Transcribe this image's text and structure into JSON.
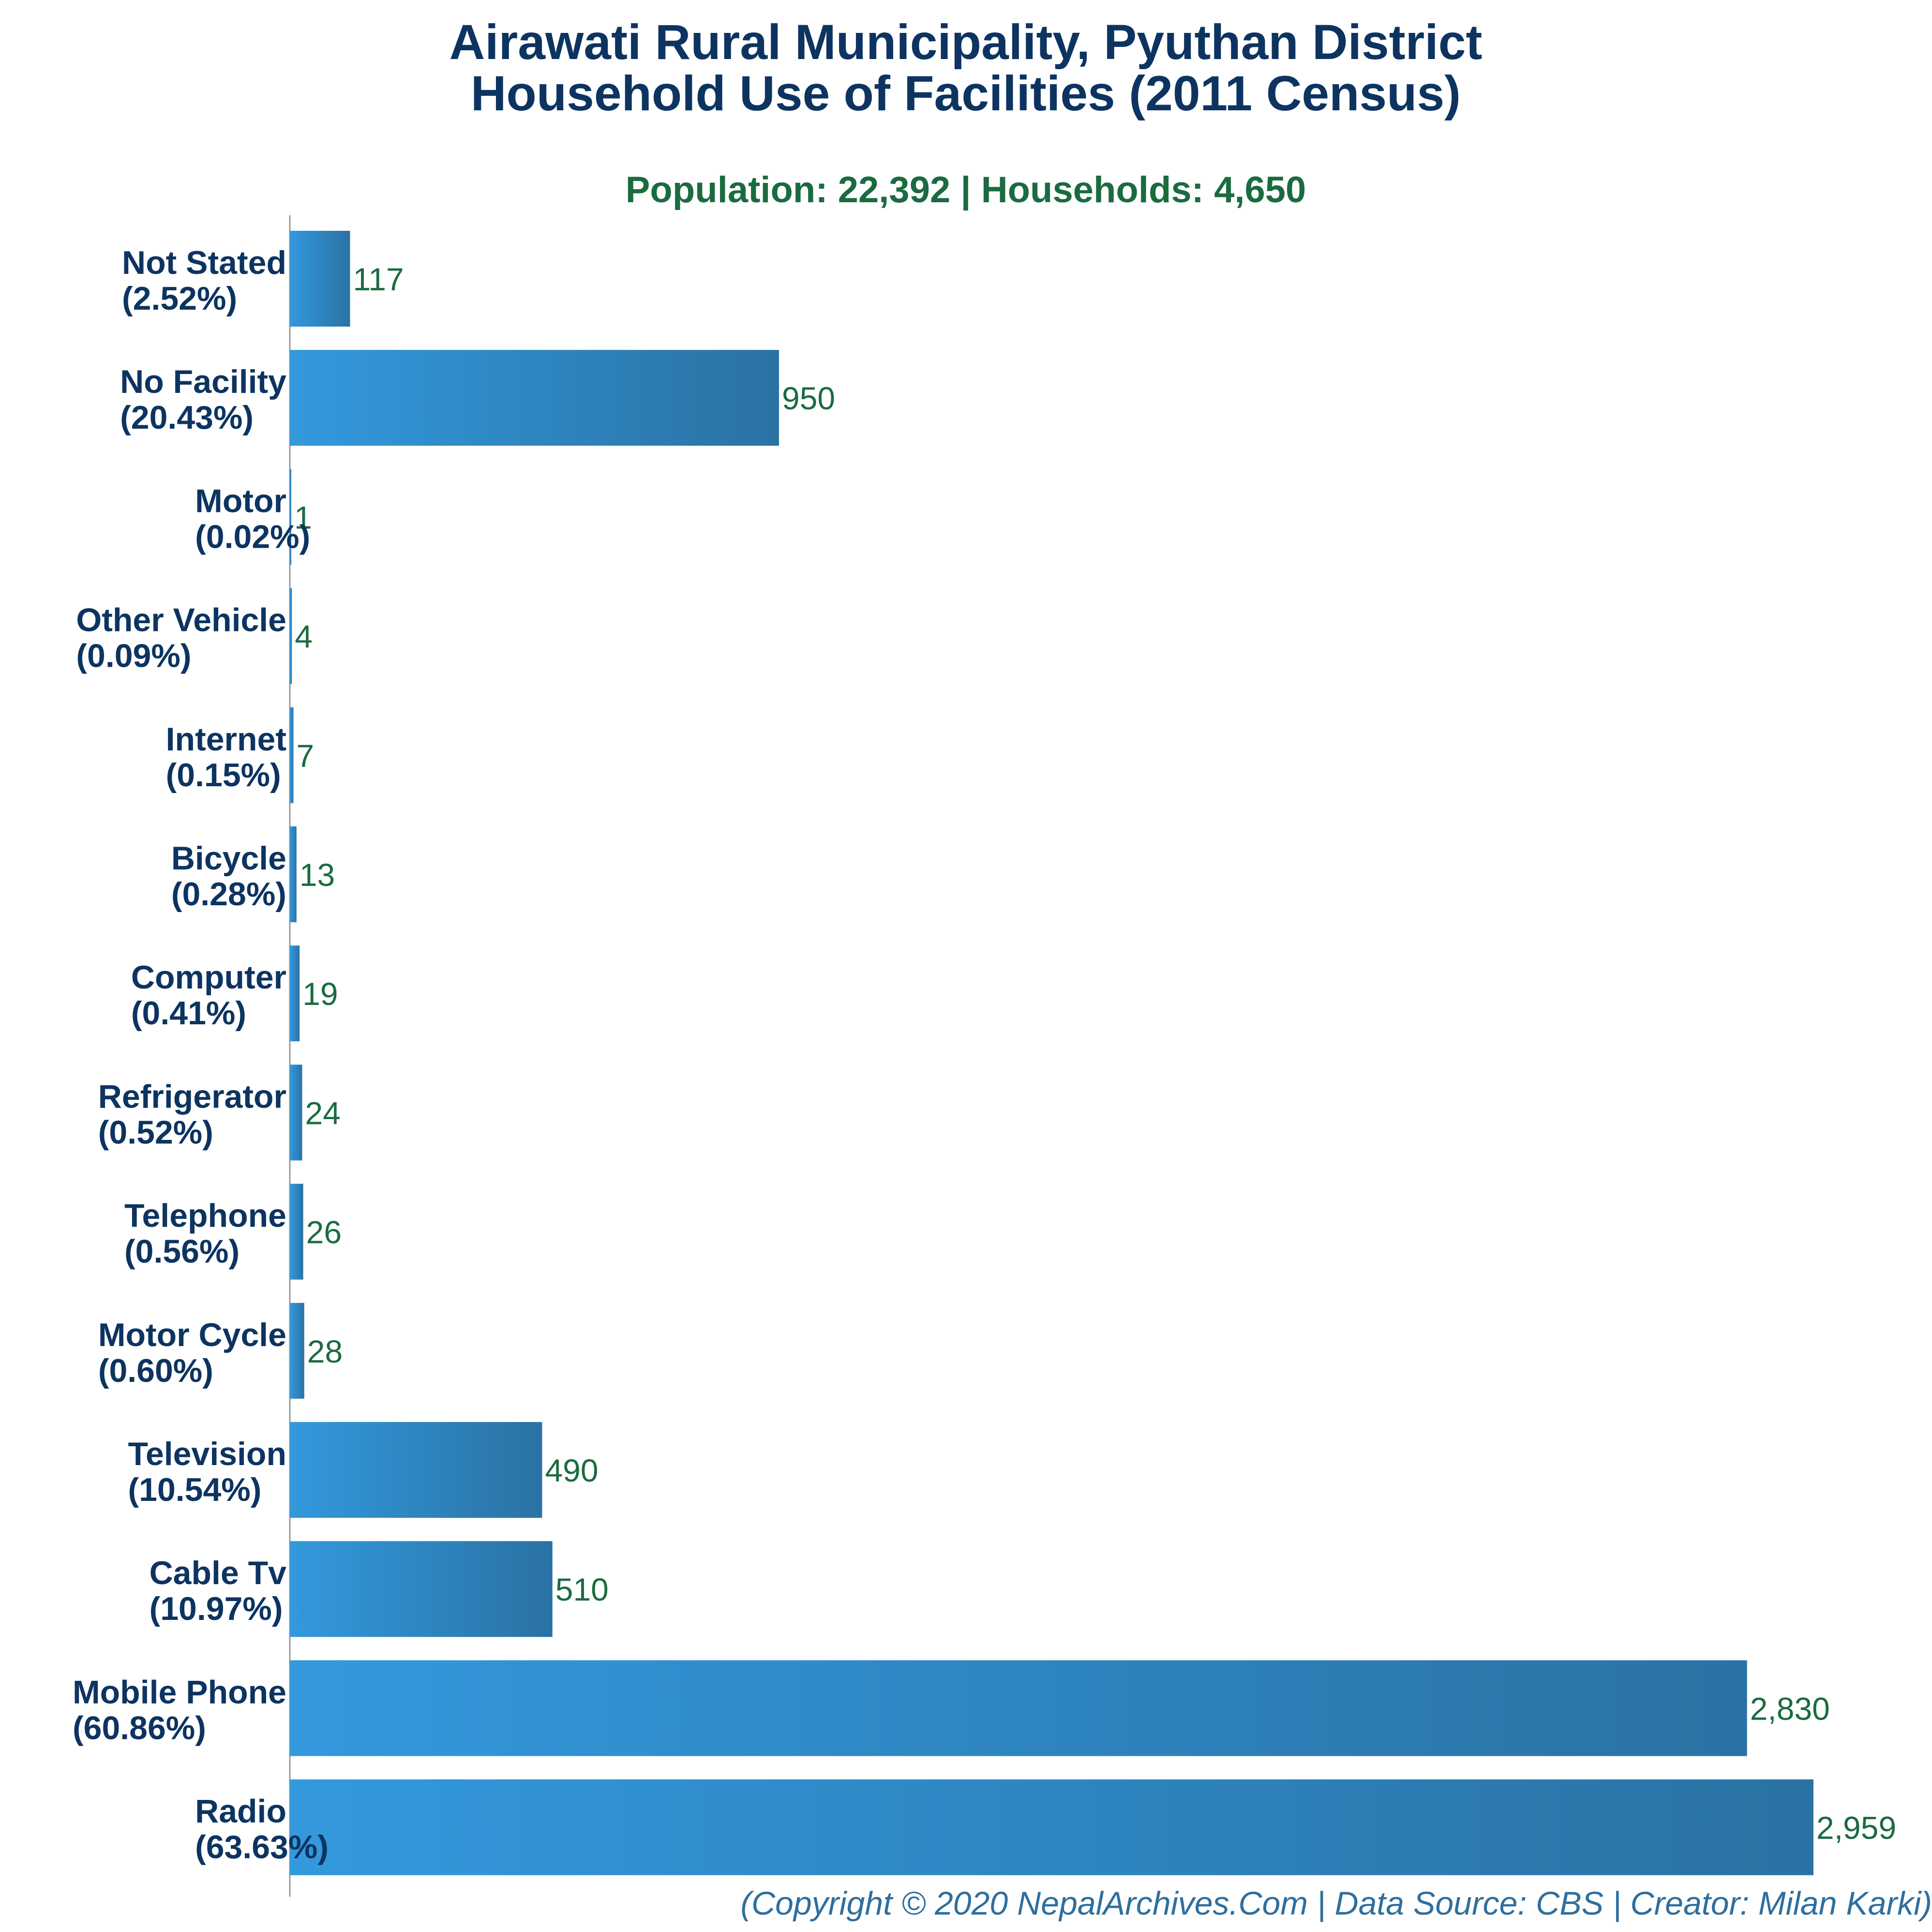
{
  "chart_data": {
    "type": "bar",
    "orientation": "horizontal",
    "title": [
      "Airawati Rural Municipality, Pyuthan District",
      "Household Use of Facilities (2011 Census)"
    ],
    "subtitle": "Population: 22,392 | Households: 4,650",
    "categories": [
      "Not Stated",
      "No Facility",
      "Motor",
      "Other Vehicle",
      "Internet",
      "Bicycle",
      "Computer",
      "Refrigerator",
      "Telephone",
      "Motor Cycle",
      "Television",
      "Cable Tv",
      "Mobile Phone",
      "Radio"
    ],
    "percent_labels": [
      "(2.52%)",
      "(20.43%)",
      "(0.02%)",
      "(0.09%)",
      "(0.15%)",
      "(0.28%)",
      "(0.41%)",
      "(0.52%)",
      "(0.56%)",
      "(0.60%)",
      "(10.54%)",
      "(10.97%)",
      "(60.86%)",
      "(63.63%)"
    ],
    "values": [
      117,
      950,
      1,
      4,
      7,
      13,
      19,
      24,
      26,
      28,
      490,
      510,
      2830,
      2959
    ],
    "value_labels": [
      "117",
      "950",
      "1",
      "4",
      "7",
      "13",
      "19",
      "24",
      "26",
      "28",
      "490",
      "510",
      "2,830",
      "2,959"
    ],
    "xlim": [
      0,
      2959
    ],
    "grid": false,
    "legend": "none",
    "footer": "(Copyright © 2020 NepalArchives.Com | Data Source: CBS | Creator: Milan Karki)",
    "colors": {
      "bar_start": "#3399dd",
      "bar_end": "#2a72a4",
      "title": "#0d3461",
      "value": "#1b6b40",
      "footer": "#2e6f9e"
    }
  }
}
